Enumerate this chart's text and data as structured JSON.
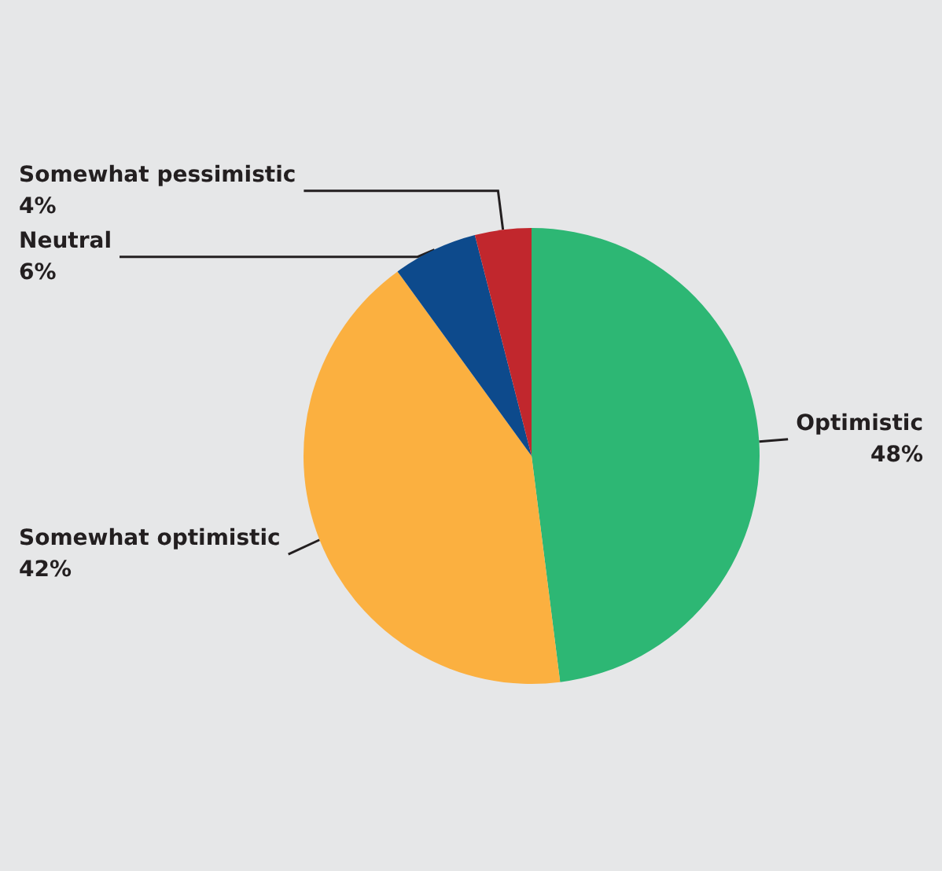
{
  "chart_data": {
    "type": "pie",
    "categories": [
      "Optimistic",
      "Somewhat optimistic",
      "Neutral",
      "Somewhat pessimistic"
    ],
    "values": [
      48,
      42,
      6,
      4
    ],
    "colors": [
      "#2db774",
      "#fbb040",
      "#0d4a8c",
      "#c1272d"
    ],
    "value_labels": [
      "48%",
      "42%",
      "6%",
      "4%"
    ]
  }
}
